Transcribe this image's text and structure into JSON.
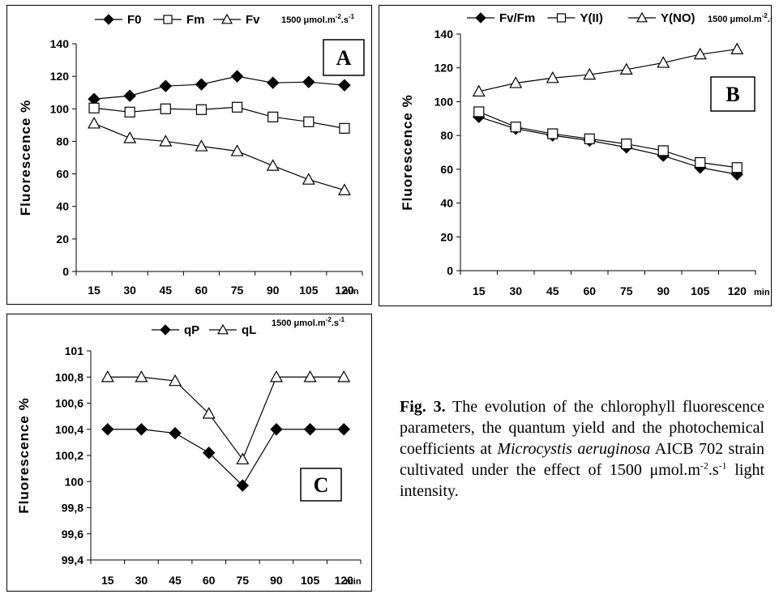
{
  "figure": {
    "caption": {
      "label": "Fig. 3.",
      "text_1": " The evolution of the chlorophyll fluorescence parameters, the quantum yield and the photochemical coefficients at ",
      "species": "Microcystis aeruginosa",
      "text_2": " AICB 702 strain cultivated under the effect of 1500 μmol.m",
      "sup_1": "-2",
      "text_3": ".s",
      "sup_2": "-1",
      "text_4": " light intensity."
    }
  },
  "chart_data": [
    {
      "panel": "A",
      "type": "line",
      "ylabel": "Fluorescence  %",
      "xunit": "min",
      "unit_label": {
        "base": "1500 μmol.m",
        "sup1": "-2",
        "mid": ".s",
        "sup2": "-1"
      },
      "categories": [
        "15",
        "30",
        "45",
        "60",
        "75",
        "90",
        "105",
        "120"
      ],
      "ylim": [
        0,
        140
      ],
      "yticks": [
        "0",
        "20",
        "40",
        "60",
        "80",
        "100",
        "120",
        "140"
      ],
      "yticks_values": [
        0,
        20,
        40,
        60,
        80,
        100,
        120,
        140
      ],
      "series": [
        {
          "name": "F0",
          "marker": "diamond",
          "values": [
            106,
            108,
            114,
            115,
            120,
            116,
            116.5,
            114.5
          ]
        },
        {
          "name": "Fm",
          "marker": "square",
          "values": [
            100.5,
            98,
            100,
            99.5,
            101,
            95,
            92,
            88
          ]
        },
        {
          "name": "Fv",
          "marker": "triangle",
          "values": [
            91,
            82,
            80,
            77,
            74,
            65,
            56.5,
            50
          ]
        }
      ]
    },
    {
      "panel": "B",
      "type": "line",
      "ylabel": "Fluorescence  %",
      "xunit": "min",
      "unit_label": {
        "base": "1500 μmol.m",
        "sup1": "-2",
        "mid": ".s",
        "sup2": "-1"
      },
      "categories": [
        "15",
        "30",
        "45",
        "60",
        "75",
        "90",
        "105",
        "120"
      ],
      "ylim": [
        0,
        140
      ],
      "yticks": [
        "0",
        "20",
        "40",
        "60",
        "80",
        "100",
        "120",
        "140"
      ],
      "yticks_values": [
        0,
        20,
        40,
        60,
        80,
        100,
        120,
        140
      ],
      "series": [
        {
          "name": "Fv/Fm",
          "marker": "diamond",
          "values": [
            91,
            84,
            80,
            77,
            73,
            68,
            61,
            57
          ]
        },
        {
          "name": "Y(II)",
          "marker": "square",
          "values": [
            94,
            85,
            81,
            78,
            75,
            71,
            64,
            61
          ]
        },
        {
          "name": "Y(NO)",
          "marker": "triangle",
          "values": [
            106,
            111,
            114,
            116,
            119,
            123,
            128,
            131
          ]
        }
      ]
    },
    {
      "panel": "C",
      "type": "line",
      "ylabel": "Fluorescence  %",
      "xunit": "min",
      "unit_label": {
        "base": "1500 μmol.m",
        "sup1": "-2",
        "mid": ".s",
        "sup2": "-1"
      },
      "categories": [
        "15",
        "30",
        "45",
        "60",
        "75",
        "90",
        "105",
        "120"
      ],
      "ylim": [
        99.4,
        101
      ],
      "yticks": [
        "99,4",
        "99,6",
        "99,8",
        "100",
        "100,2",
        "100,4",
        "100,6",
        "100,8",
        "101"
      ],
      "yticks_values": [
        99.4,
        99.6,
        99.8,
        100,
        100.2,
        100.4,
        100.6,
        100.8,
        101
      ],
      "series": [
        {
          "name": "qP",
          "marker": "diamond",
          "values": [
            100.4,
            100.4,
            100.37,
            100.22,
            99.97,
            100.4,
            100.4,
            100.4
          ]
        },
        {
          "name": "qL",
          "marker": "triangle",
          "values": [
            100.8,
            100.8,
            100.77,
            100.52,
            100.17,
            100.8,
            100.8,
            100.8
          ]
        }
      ]
    }
  ]
}
